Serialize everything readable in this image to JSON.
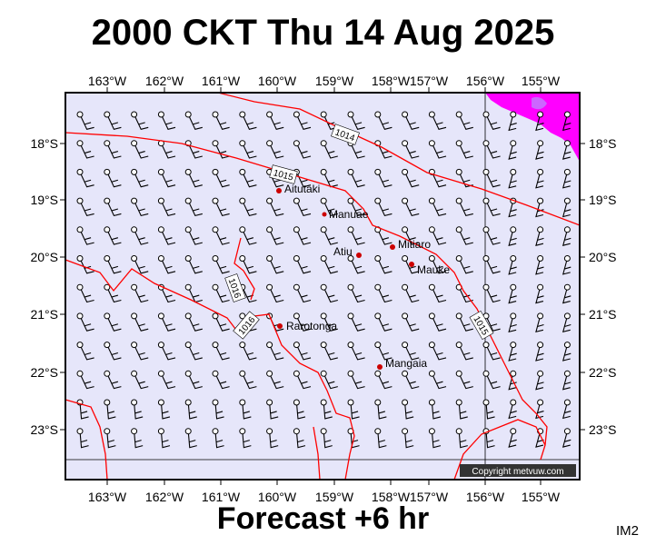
{
  "title": "2000 CKT Thu 14 Aug 2025",
  "footer": "Forecast +6 hr",
  "tag": "IM2",
  "copyright": "Copyright metvuw.com",
  "colors": {
    "background": "#e6e6fa",
    "isobar": "#ff0000",
    "place": "#cc0000",
    "highlight": "#ff00ff"
  },
  "lon_labels": [
    "163°W",
    "162°W",
    "161°W",
    "160°W",
    "159°W",
    "158°W",
    "157°W",
    "156°W",
    "155°W"
  ],
  "lat_labels": [
    "18°S",
    "19°S",
    "20°S",
    "21°S",
    "22°S",
    "23°S"
  ],
  "places": [
    "Aitutaki",
    "Manuae",
    "Mitiaro",
    "Atiu",
    "Mauke",
    "Rarotonga",
    "Mangaia"
  ],
  "isobar_labels": [
    "1014",
    "1015",
    "1016",
    "1016",
    "1015"
  ]
}
